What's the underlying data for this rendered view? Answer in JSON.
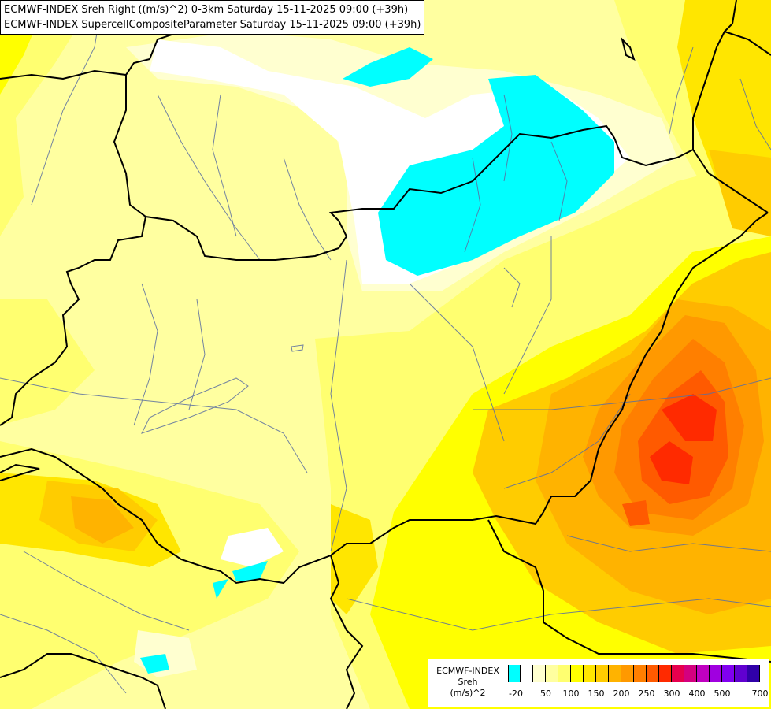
{
  "title": {
    "line1": "ECMWF-INDEX Sreh Right ((m/s)^2) 0-3km Saturday 15-11-2025 09:00 (+39h)",
    "line2": "ECMWF-INDEX SupercellCompositeParameter Saturday 15-11-2025 09:00 (+39h)"
  },
  "legend": {
    "model": "ECMWF-INDEX",
    "variable": "Sreh",
    "unit": "(m/s)^2",
    "colors": [
      "#00ffff",
      "#ffffff",
      "#ffffd0",
      "#ffffa0",
      "#ffff70",
      "#ffff00",
      "#ffe600",
      "#ffcc00",
      "#ffb300",
      "#ff9900",
      "#ff7f00",
      "#ff5a00",
      "#ff2a00",
      "#e6004d",
      "#d4007f",
      "#c000c0",
      "#a000e0",
      "#8000f0",
      "#6000d0",
      "#3000a8"
    ],
    "ticks": [
      "-20",
      "50",
      "100",
      "150",
      "200",
      "250",
      "300",
      "400",
      "500",
      "700"
    ]
  },
  "colors": {
    "border": "#000000",
    "river": "#5a6ea0",
    "negative": "#00ffff"
  }
}
